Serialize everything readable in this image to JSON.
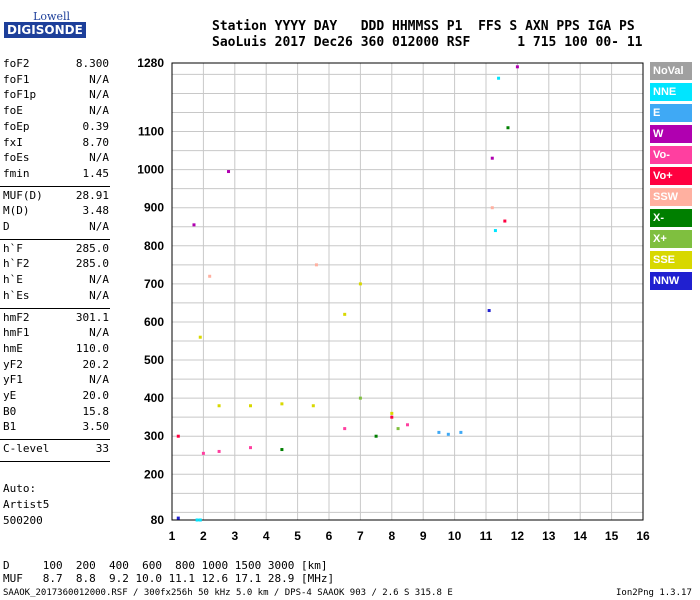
{
  "logo": {
    "line1": "Lowell",
    "line2": "DIGISONDE"
  },
  "header": {
    "row1": "Station YYYY DAY   DDD HHMMSS P1  FFS S AXN PPS IGA PS",
    "row2": "SaoLuis 2017 Dec26 360 012000 RSF      1 715 100 00- 11"
  },
  "params_group1": [
    {
      "name": "foF2",
      "value": "8.300"
    },
    {
      "name": "foF1",
      "value": "N/A"
    },
    {
      "name": "foF1p",
      "value": "N/A"
    },
    {
      "name": "foE",
      "value": "N/A"
    },
    {
      "name": "foEp",
      "value": "0.39"
    },
    {
      "name": "fxI",
      "value": "8.70"
    },
    {
      "name": "foEs",
      "value": "N/A"
    },
    {
      "name": "fmin",
      "value": "1.45"
    }
  ],
  "params_group2": [
    {
      "name": "MUF(D)",
      "value": "28.91"
    },
    {
      "name": "M(D)",
      "value": "3.48"
    },
    {
      "name": "D",
      "value": "N/A"
    }
  ],
  "params_group3": [
    {
      "name": "h`F",
      "value": "285.0"
    },
    {
      "name": "h`F2",
      "value": "285.0"
    },
    {
      "name": "h`E",
      "value": "N/A"
    },
    {
      "name": "h`Es",
      "value": "N/A"
    }
  ],
  "params_group4": [
    {
      "name": "hmF2",
      "value": "301.1"
    },
    {
      "name": "hmF1",
      "value": "N/A"
    },
    {
      "name": "hmE",
      "value": "110.0"
    },
    {
      "name": "yF2",
      "value": "20.2"
    },
    {
      "name": "yF1",
      "value": "N/A"
    },
    {
      "name": "yE",
      "value": "20.0"
    },
    {
      "name": "B0",
      "value": "15.8"
    },
    {
      "name": "B1",
      "value": "3.50"
    }
  ],
  "params_group5": [
    {
      "name": "C-level",
      "value": "33"
    }
  ],
  "auto": {
    "label": "Auto:",
    "software": "Artist5",
    "code": "500200"
  },
  "legend": [
    {
      "label": "NoVal",
      "color": "#a0a0a0"
    },
    {
      "label": "NNE",
      "color": "#00e5ff"
    },
    {
      "label": "E",
      "color": "#3fa9f5"
    },
    {
      "label": "W",
      "color": "#b000b0"
    },
    {
      "label": "Vo-",
      "color": "#ff3fa0"
    },
    {
      "label": "Vo+",
      "color": "#ff0040"
    },
    {
      "label": "SSW",
      "color": "#ffb0a0"
    },
    {
      "label": "X-",
      "color": "#007f00"
    },
    {
      "label": "X+",
      "color": "#7fbf3f"
    },
    {
      "label": "SSE",
      "color": "#d8d800"
    },
    {
      "label": "NNW",
      "color": "#2020d0"
    }
  ],
  "bottom": {
    "row1": "D     100  200  400  600  800 1000 1500 3000 [km]",
    "row2": "MUF   8.7  8.8  9.2 10.0 11.1 12.6 17.1 28.9 [MHz]",
    "footer_left": "SAAOK_2017360012000.RSF / 300fx256h 50 kHz 5.0 km / DPS-4 SAAOK 903 / 2.6 S 315.8 E",
    "footer_right": "Ion2Png 1.3.17"
  },
  "chart_data": {
    "type": "scatter",
    "title": "",
    "xlabel": "",
    "ylabel": "",
    "xlim": [
      1,
      16
    ],
    "ylim": [
      80,
      1280
    ],
    "x_ticks": [
      1,
      2,
      3,
      4,
      5,
      6,
      7,
      8,
      9,
      10,
      11,
      12,
      13,
      14,
      15,
      16
    ],
    "y_ticks": [
      80,
      200,
      300,
      400,
      500,
      600,
      700,
      800,
      900,
      1000,
      1100,
      1280
    ],
    "grid": true,
    "series": [
      {
        "name": "NoVal",
        "color": "#a0a0a0",
        "points": []
      },
      {
        "name": "NNE",
        "color": "#00e5ff",
        "points": [
          [
            11.4,
            1240
          ],
          [
            1.8,
            80
          ],
          [
            1.9,
            80
          ],
          [
            11.3,
            840
          ]
        ]
      },
      {
        "name": "E",
        "color": "#3fa9f5",
        "points": [
          [
            9.5,
            310
          ],
          [
            10.2,
            310
          ],
          [
            9.8,
            305
          ]
        ]
      },
      {
        "name": "W",
        "color": "#b000b0",
        "points": [
          [
            12.0,
            1270
          ],
          [
            1.7,
            855
          ],
          [
            2.8,
            995
          ],
          [
            11.2,
            1030
          ]
        ]
      },
      {
        "name": "Vo-",
        "color": "#ff3fa0",
        "points": [
          [
            2.0,
            255
          ],
          [
            2.5,
            260
          ],
          [
            3.5,
            270
          ],
          [
            6.5,
            320
          ],
          [
            8.5,
            330
          ]
        ]
      },
      {
        "name": "Vo+",
        "color": "#ff0040",
        "points": [
          [
            11.6,
            865
          ],
          [
            1.2,
            300
          ],
          [
            8.0,
            350
          ]
        ]
      },
      {
        "name": "SSW",
        "color": "#ffb0a0",
        "points": [
          [
            2.2,
            720
          ],
          [
            5.6,
            750
          ],
          [
            11.2,
            900
          ]
        ]
      },
      {
        "name": "X-",
        "color": "#007f00",
        "points": [
          [
            11.7,
            1110
          ],
          [
            4.5,
            265
          ],
          [
            7.5,
            300
          ]
        ]
      },
      {
        "name": "X+",
        "color": "#7fbf3f",
        "points": [
          [
            7.0,
            400
          ],
          [
            8.2,
            320
          ]
        ]
      },
      {
        "name": "SSE",
        "color": "#d8d800",
        "points": [
          [
            1.9,
            560
          ],
          [
            2.5,
            380
          ],
          [
            3.5,
            380
          ],
          [
            4.5,
            385
          ],
          [
            5.5,
            380
          ],
          [
            6.5,
            620
          ],
          [
            7.0,
            700
          ],
          [
            8.0,
            360
          ]
        ]
      },
      {
        "name": "NNW",
        "color": "#2020d0",
        "points": [
          [
            11.1,
            630
          ],
          [
            1.2,
            85
          ]
        ]
      }
    ]
  }
}
